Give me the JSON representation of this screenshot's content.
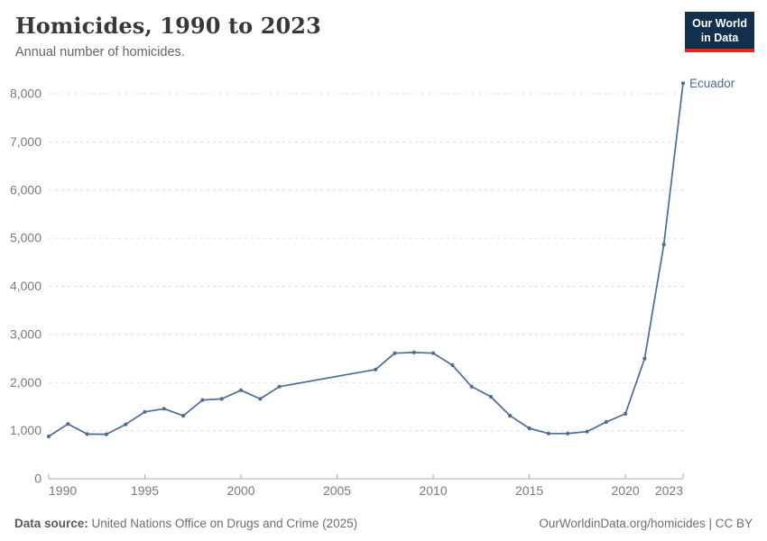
{
  "header": {
    "title": "Homicides, 1990 to 2023",
    "subtitle": "Annual number of homicides.",
    "logo": {
      "line1": "Our World",
      "line2": "in Data",
      "bg_color": "#12304e",
      "accent_color": "#e0262d"
    }
  },
  "chart_data": {
    "type": "line",
    "title": "Homicides, 1990 to 2023",
    "xlabel": "",
    "ylabel": "",
    "xlim": [
      1990,
      2023
    ],
    "ylim": [
      0,
      8000
    ],
    "x_ticks": [
      1990,
      1995,
      2000,
      2005,
      2010,
      2015,
      2020,
      2023
    ],
    "y_ticks": [
      0,
      1000,
      2000,
      3000,
      4000,
      5000,
      6000,
      7000,
      8000
    ],
    "grid": "horizontal-dashed",
    "legend_position": "end-of-line-label",
    "gridline_color": "#dcdcdc",
    "axis_color": "#ababab",
    "tick_label_color": "#7a7a7a",
    "series": [
      {
        "name": "Ecuador",
        "color": "#4C6A9C",
        "note": "gap 2003-2006: no data, straight interpolation",
        "points": [
          [
            1990,
            880
          ],
          [
            1991,
            1140
          ],
          [
            1992,
            930
          ],
          [
            1993,
            925
          ],
          [
            1994,
            1130
          ],
          [
            1995,
            1390
          ],
          [
            1996,
            1455
          ],
          [
            1997,
            1310
          ],
          [
            1998,
            1635
          ],
          [
            1999,
            1660
          ],
          [
            2000,
            1840
          ],
          [
            2001,
            1660
          ],
          [
            2002,
            1915
          ],
          [
            2007,
            2270
          ],
          [
            2008,
            2610
          ],
          [
            2009,
            2625
          ],
          [
            2010,
            2610
          ],
          [
            2011,
            2360
          ],
          [
            2012,
            1915
          ],
          [
            2013,
            1705
          ],
          [
            2014,
            1310
          ],
          [
            2015,
            1050
          ],
          [
            2016,
            940
          ],
          [
            2017,
            940
          ],
          [
            2018,
            980
          ],
          [
            2019,
            1180
          ],
          [
            2020,
            1350
          ],
          [
            2021,
            2500
          ],
          [
            2022,
            4870
          ],
          [
            2023,
            8220
          ]
        ]
      }
    ]
  },
  "footer": {
    "source_label": "Data source:",
    "source_text": " United Nations Office on Drugs and Crime (2025)",
    "credit": "OurWorldinData.org/homicides | CC BY"
  }
}
